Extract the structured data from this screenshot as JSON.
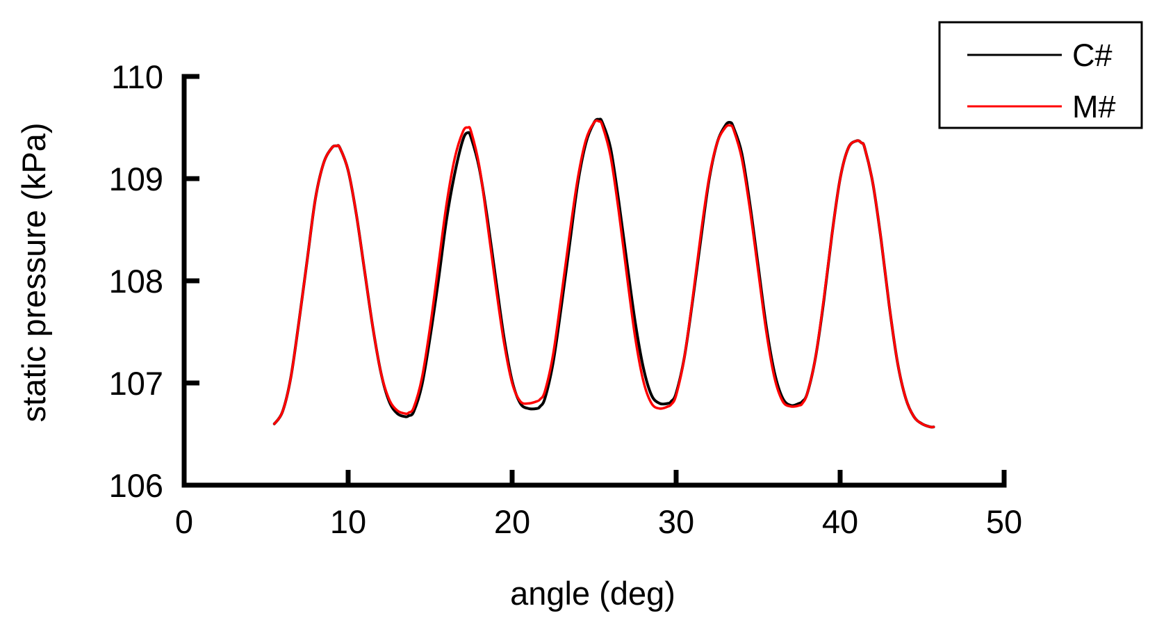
{
  "chart_data": {
    "type": "line",
    "title": "",
    "xlabel": "angle (deg)",
    "ylabel": "static pressure (kPa)",
    "xlim": [
      0,
      50
    ],
    "ylim": [
      106,
      110
    ],
    "xticks": [
      0,
      10,
      20,
      30,
      40,
      50
    ],
    "yticks": [
      106,
      107,
      108,
      109,
      110
    ],
    "xtick_labels": [
      "0",
      "10",
      "20",
      "30",
      "40",
      "50"
    ],
    "ytick_labels": [
      "106",
      "107",
      "108",
      "109",
      "110"
    ],
    "grid": false,
    "legend_position": "top-right",
    "series": [
      {
        "name": "C#",
        "color": "#000000",
        "x": [
          5.5,
          6.0,
          6.5,
          7.0,
          7.5,
          8.0,
          8.5,
          9.0,
          9.3,
          9.5,
          10.0,
          10.5,
          11.0,
          11.5,
          12.0,
          12.5,
          13.0,
          13.5,
          13.7,
          14.0,
          14.5,
          15.0,
          15.5,
          16.0,
          16.5,
          17.0,
          17.3,
          17.5,
          18.0,
          18.5,
          19.0,
          19.5,
          20.0,
          20.5,
          21.0,
          21.5,
          21.7,
          22.0,
          22.5,
          23.0,
          23.5,
          24.0,
          24.5,
          25.0,
          25.3,
          25.5,
          26.0,
          26.5,
          27.0,
          27.5,
          28.0,
          28.5,
          29.0,
          29.5,
          29.7,
          30.0,
          30.5,
          31.0,
          31.5,
          32.0,
          32.5,
          33.0,
          33.3,
          33.5,
          34.0,
          34.5,
          35.0,
          35.5,
          36.0,
          36.5,
          37.0,
          37.5,
          37.7,
          38.0,
          38.5,
          39.0,
          39.5,
          40.0,
          40.5,
          41.0,
          41.3,
          41.5,
          42.0,
          42.5,
          43.0,
          43.5,
          44.0,
          44.5,
          45.0,
          45.5,
          45.7
        ],
        "y": [
          106.6,
          106.72,
          107.05,
          107.6,
          108.2,
          108.8,
          109.15,
          109.3,
          109.32,
          109.3,
          109.08,
          108.65,
          108.1,
          107.55,
          107.1,
          106.82,
          106.7,
          106.67,
          106.68,
          106.72,
          106.98,
          107.45,
          108.0,
          108.6,
          109.05,
          109.38,
          109.45,
          109.4,
          109.1,
          108.6,
          108.02,
          107.45,
          107.02,
          106.8,
          106.75,
          106.75,
          106.77,
          106.85,
          107.2,
          107.75,
          108.35,
          108.95,
          109.35,
          109.55,
          109.58,
          109.55,
          109.3,
          108.78,
          108.18,
          107.6,
          107.15,
          106.88,
          106.8,
          106.8,
          106.82,
          106.9,
          107.25,
          107.8,
          108.4,
          108.98,
          109.35,
          109.52,
          109.55,
          109.5,
          109.25,
          108.75,
          108.15,
          107.55,
          107.1,
          106.85,
          106.78,
          106.8,
          106.82,
          106.9,
          107.25,
          107.8,
          108.45,
          109.0,
          109.3,
          109.37,
          109.35,
          109.3,
          108.95,
          108.4,
          107.75,
          107.2,
          106.85,
          106.67,
          106.6,
          106.57,
          106.57
        ]
      },
      {
        "name": "M#",
        "color": "#ff0000",
        "x": [
          5.5,
          6.0,
          6.5,
          7.0,
          7.5,
          8.0,
          8.5,
          9.0,
          9.3,
          9.5,
          10.0,
          10.5,
          11.0,
          11.5,
          12.0,
          12.5,
          13.0,
          13.5,
          13.7,
          14.0,
          14.5,
          15.0,
          15.5,
          16.0,
          16.5,
          17.0,
          17.3,
          17.5,
          18.0,
          18.5,
          19.0,
          19.5,
          20.0,
          20.5,
          21.0,
          21.5,
          21.7,
          22.0,
          22.5,
          23.0,
          23.5,
          24.0,
          24.5,
          25.0,
          25.3,
          25.5,
          26.0,
          26.5,
          27.0,
          27.5,
          28.0,
          28.5,
          29.0,
          29.5,
          29.7,
          30.0,
          30.5,
          31.0,
          31.5,
          32.0,
          32.5,
          33.0,
          33.3,
          33.5,
          34.0,
          34.5,
          35.0,
          35.5,
          36.0,
          36.5,
          37.0,
          37.5,
          37.7,
          38.0,
          38.5,
          39.0,
          39.5,
          40.0,
          40.5,
          41.0,
          41.3,
          41.5,
          42.0,
          42.5,
          43.0,
          43.5,
          44.0,
          44.5,
          45.0,
          45.5,
          45.7
        ],
        "y": [
          106.6,
          106.72,
          107.05,
          107.6,
          108.2,
          108.8,
          109.15,
          109.3,
          109.32,
          109.3,
          109.08,
          108.65,
          108.1,
          107.55,
          107.1,
          106.84,
          106.73,
          106.7,
          106.71,
          106.76,
          107.05,
          107.55,
          108.15,
          108.75,
          109.2,
          109.46,
          109.5,
          109.46,
          109.12,
          108.55,
          107.95,
          107.4,
          107.0,
          106.82,
          106.8,
          106.82,
          106.84,
          106.92,
          107.28,
          107.85,
          108.45,
          109.0,
          109.38,
          109.55,
          109.56,
          109.52,
          109.22,
          108.68,
          108.05,
          107.45,
          107.02,
          106.8,
          106.75,
          106.77,
          106.79,
          106.88,
          107.25,
          107.82,
          108.45,
          109.0,
          109.35,
          109.5,
          109.52,
          109.48,
          109.2,
          108.7,
          108.1,
          107.5,
          107.05,
          106.82,
          106.77,
          106.78,
          106.8,
          106.9,
          107.25,
          107.82,
          108.45,
          109.0,
          109.3,
          109.37,
          109.35,
          109.3,
          108.95,
          108.4,
          107.75,
          107.2,
          106.85,
          106.67,
          106.6,
          106.57,
          106.57
        ]
      }
    ]
  }
}
